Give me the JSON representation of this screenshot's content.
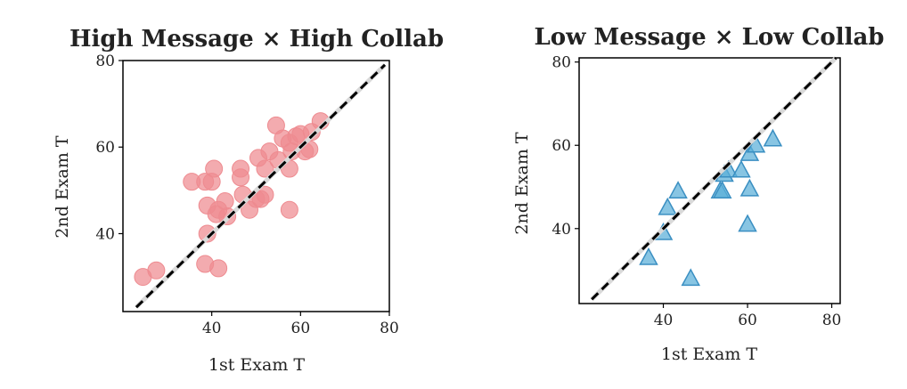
{
  "chart_data": [
    {
      "type": "scatter",
      "title": "High Message × High Collab",
      "xlabel": "1st Exam T",
      "ylabel": "2nd Exam T",
      "xlim": [
        20,
        80
      ],
      "ylim": [
        22,
        80
      ],
      "xticks": [
        40,
        60,
        80
      ],
      "yticks": [
        40,
        60,
        80
      ],
      "marker": "circle",
      "color": "#ee8b90",
      "reference_line": {
        "style": "dashed",
        "color": "#000000",
        "from": [
          23,
          23
        ],
        "to": [
          79,
          79
        ]
      },
      "grid": false,
      "points": [
        [
          24.5,
          30
        ],
        [
          27.5,
          31.5
        ],
        [
          35.5,
          52
        ],
        [
          38.5,
          52
        ],
        [
          40,
          52
        ],
        [
          40.5,
          55
        ],
        [
          39,
          46.5
        ],
        [
          41,
          44.5
        ],
        [
          41.5,
          45.5
        ],
        [
          43,
          47.5
        ],
        [
          43.5,
          44
        ],
        [
          39,
          40
        ],
        [
          38.5,
          33
        ],
        [
          41.5,
          32
        ],
        [
          46.5,
          55
        ],
        [
          46.5,
          53
        ],
        [
          47,
          49
        ],
        [
          48.5,
          45.5
        ],
        [
          50,
          48
        ],
        [
          51,
          48
        ],
        [
          52,
          49
        ],
        [
          50.5,
          57.5
        ],
        [
          52,
          55
        ],
        [
          53,
          59
        ],
        [
          54.5,
          65
        ],
        [
          55,
          57
        ],
        [
          56,
          62
        ],
        [
          57.5,
          55
        ],
        [
          57.5,
          61
        ],
        [
          58,
          59
        ],
        [
          59,
          62.5
        ],
        [
          60,
          63
        ],
        [
          61,
          59
        ],
        [
          62,
          59.5
        ],
        [
          62.5,
          63.5
        ],
        [
          64.5,
          66
        ],
        [
          57.5,
          45.5
        ]
      ]
    },
    {
      "type": "scatter",
      "title": "Low Message × Low Collab",
      "xlabel": "1st Exam T",
      "ylabel": "2nd Exam T",
      "xlim": [
        20,
        82
      ],
      "ylim": [
        22,
        81
      ],
      "xticks": [
        40,
        60,
        80
      ],
      "yticks": [
        40,
        60,
        80
      ],
      "marker": "triangle",
      "color": "#5aaed8",
      "reference_line": {
        "style": "dashed",
        "color": "#000000",
        "from": [
          23,
          23
        ],
        "to": [
          81,
          81
        ]
      },
      "grid": false,
      "points": [
        [
          36.5,
          33
        ],
        [
          40,
          39
        ],
        [
          41,
          45
        ],
        [
          43.5,
          49
        ],
        [
          46.5,
          28
        ],
        [
          53.5,
          49
        ],
        [
          54,
          49
        ],
        [
          54.5,
          53
        ],
        [
          55.5,
          54
        ],
        [
          58.5,
          54
        ],
        [
          60,
          41
        ],
        [
          60.5,
          58
        ],
        [
          60.5,
          49.5
        ],
        [
          62,
          60
        ],
        [
          66,
          61.5
        ]
      ]
    }
  ]
}
